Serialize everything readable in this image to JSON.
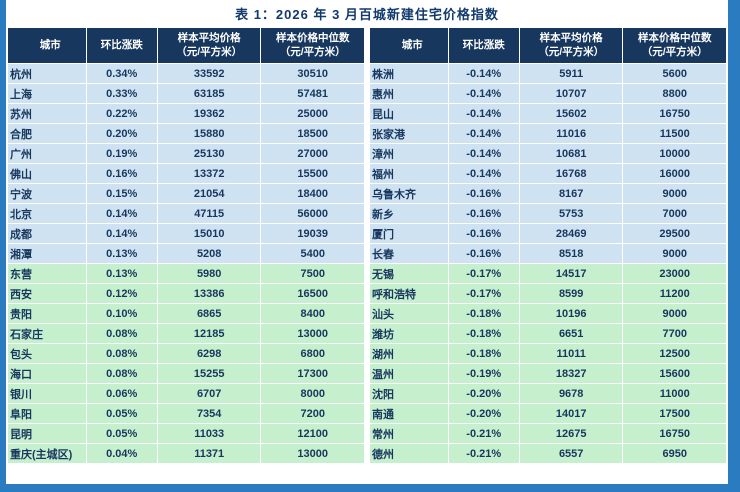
{
  "page": {
    "title": "表 1：2026 年 3 月百城新建住宅价格指数"
  },
  "colors": {
    "frame_blue": "#2b7bc0",
    "header_navy": "#17375e",
    "row_light_blue": "#cfe2f1",
    "row_light_green": "#c6efce",
    "text_navy": "#17375e"
  },
  "table": {
    "headers": [
      "城市",
      "环比涨跌",
      "样本平均价格\n（元/平方米）",
      "样本价格中位数\n（元/平方米）"
    ]
  },
  "tables": [
    {
      "side": "left",
      "blue_row_count": 10,
      "rows": [
        [
          "杭州",
          "0.34%",
          "33592",
          "30510"
        ],
        [
          "上海",
          "0.33%",
          "63185",
          "57481"
        ],
        [
          "苏州",
          "0.22%",
          "19362",
          "25000"
        ],
        [
          "合肥",
          "0.20%",
          "15880",
          "18500"
        ],
        [
          "广州",
          "0.19%",
          "25130",
          "27000"
        ],
        [
          "佛山",
          "0.16%",
          "13372",
          "15500"
        ],
        [
          "宁波",
          "0.15%",
          "21054",
          "18400"
        ],
        [
          "北京",
          "0.14%",
          "47115",
          "56000"
        ],
        [
          "成都",
          "0.14%",
          "15010",
          "19039"
        ],
        [
          "湘潭",
          "0.13%",
          "5208",
          "5400"
        ],
        [
          "东营",
          "0.13%",
          "5980",
          "7500"
        ],
        [
          "西安",
          "0.12%",
          "13386",
          "16500"
        ],
        [
          "贵阳",
          "0.10%",
          "6865",
          "8400"
        ],
        [
          "石家庄",
          "0.08%",
          "12185",
          "13000"
        ],
        [
          "包头",
          "0.08%",
          "6298",
          "6800"
        ],
        [
          "海口",
          "0.08%",
          "15255",
          "17300"
        ],
        [
          "银川",
          "0.06%",
          "6707",
          "8000"
        ],
        [
          "阜阳",
          "0.05%",
          "7354",
          "7200"
        ],
        [
          "昆明",
          "0.05%",
          "11033",
          "12100"
        ],
        [
          "重庆(主城区)",
          "0.04%",
          "11371",
          "13000"
        ]
      ]
    },
    {
      "side": "right",
      "blue_row_count": 10,
      "rows": [
        [
          "株洲",
          "-0.14%",
          "5911",
          "5600"
        ],
        [
          "惠州",
          "-0.14%",
          "10707",
          "8800"
        ],
        [
          "昆山",
          "-0.14%",
          "15602",
          "16750"
        ],
        [
          "张家港",
          "-0.14%",
          "11016",
          "11500"
        ],
        [
          "漳州",
          "-0.14%",
          "10681",
          "10000"
        ],
        [
          "福州",
          "-0.14%",
          "16768",
          "16000"
        ],
        [
          "乌鲁木齐",
          "-0.16%",
          "8167",
          "9000"
        ],
        [
          "新乡",
          "-0.16%",
          "5753",
          "7000"
        ],
        [
          "厦门",
          "-0.16%",
          "28469",
          "29500"
        ],
        [
          "长春",
          "-0.16%",
          "8518",
          "9000"
        ],
        [
          "无锡",
          "-0.17%",
          "14517",
          "23000"
        ],
        [
          "呼和浩特",
          "-0.17%",
          "8599",
          "11200"
        ],
        [
          "汕头",
          "-0.18%",
          "10196",
          "9000"
        ],
        [
          "潍坊",
          "-0.18%",
          "6651",
          "7700"
        ],
        [
          "湖州",
          "-0.18%",
          "11011",
          "12500"
        ],
        [
          "温州",
          "-0.19%",
          "18327",
          "15600"
        ],
        [
          "沈阳",
          "-0.20%",
          "9678",
          "11000"
        ],
        [
          "南通",
          "-0.20%",
          "14017",
          "17500"
        ],
        [
          "常州",
          "-0.21%",
          "12675",
          "16750"
        ],
        [
          "德州",
          "-0.21%",
          "6557",
          "6950"
        ]
      ]
    }
  ]
}
